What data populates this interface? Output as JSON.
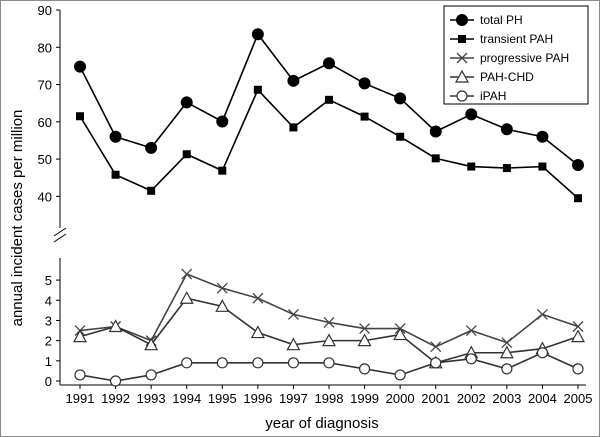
{
  "chart_data": {
    "type": "line",
    "xlabel": "year of diagnosis",
    "ylabel": "annual incident cases per million",
    "x": [
      1991,
      1992,
      1993,
      1994,
      1995,
      1996,
      1997,
      1998,
      1999,
      2000,
      2001,
      2002,
      2003,
      2004,
      2005
    ],
    "y_axis": "broken",
    "upper_panel": {
      "ylim": [
        35,
        90
      ],
      "yticks": [
        40,
        50,
        60,
        70,
        80,
        90
      ]
    },
    "lower_panel": {
      "ylim": [
        0,
        5.5
      ],
      "yticks": [
        0,
        1,
        2,
        3,
        4,
        5
      ]
    },
    "legend_position": "top-right",
    "series": [
      {
        "name": "total PH",
        "marker": "filled-circle",
        "panel": "upper",
        "values": [
          74.8,
          56.0,
          53.0,
          65.2,
          60.1,
          83.5,
          71.0,
          75.7,
          70.3,
          66.3,
          57.4,
          62.0,
          58.0,
          56.0,
          48.4
        ]
      },
      {
        "name": "transient PAH",
        "marker": "filled-square",
        "panel": "upper",
        "values": [
          61.5,
          45.8,
          41.5,
          51.3,
          46.9,
          68.6,
          58.5,
          65.9,
          61.4,
          56.0,
          50.2,
          48.0,
          47.6,
          48.0,
          39.5
        ]
      },
      {
        "name": "progressive PAH",
        "marker": "cross",
        "panel": "lower",
        "values": [
          2.5,
          2.7,
          2.0,
          5.3,
          4.6,
          4.1,
          3.3,
          2.9,
          2.6,
          2.6,
          1.7,
          2.5,
          1.9,
          3.3,
          2.7
        ]
      },
      {
        "name": "PAH-CHD",
        "marker": "open-triangle",
        "panel": "lower",
        "values": [
          2.2,
          2.7,
          1.8,
          4.1,
          3.7,
          2.4,
          1.8,
          2.0,
          2.0,
          2.3,
          0.9,
          1.4,
          1.4,
          1.6,
          2.2
        ]
      },
      {
        "name": "iPAH",
        "marker": "open-circle",
        "panel": "lower",
        "values": [
          0.3,
          0.0,
          0.3,
          0.9,
          0.9,
          0.9,
          0.9,
          0.9,
          0.6,
          0.3,
          0.9,
          1.1,
          0.6,
          1.4,
          0.6
        ]
      }
    ]
  }
}
